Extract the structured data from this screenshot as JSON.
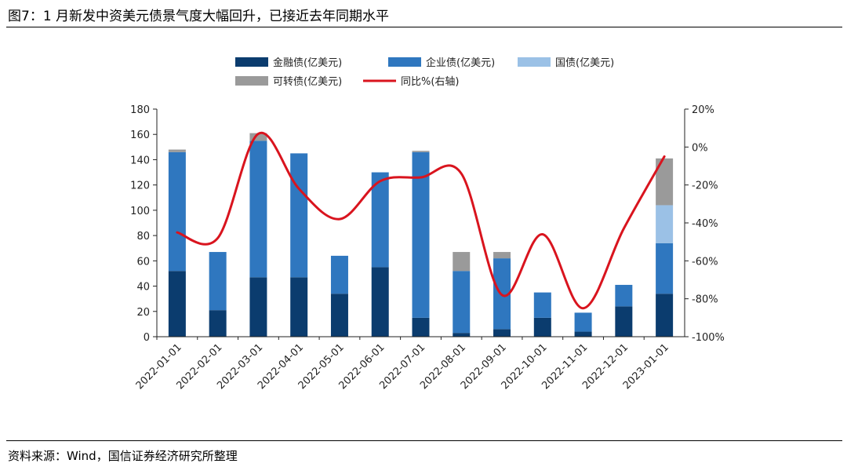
{
  "figure": {
    "title": "图7：1 月新发中资美元债景气度大幅回升，已接近去年同期水平",
    "source": "资料来源：Wind，国信证券经济研究所整理"
  },
  "colors": {
    "financial": "#0b3c6e",
    "corporate": "#2f77bf",
    "government": "#9bc1e6",
    "convertible": "#9a9a9a",
    "yoy": "#d9141e",
    "axis": "#222222"
  },
  "chart_data": {
    "type": "bar",
    "stacked": true,
    "categories": [
      "2022-01-01",
      "2022-02-01",
      "2022-03-01",
      "2022-04-01",
      "2022-05-01",
      "2022-06-01",
      "2022-07-01",
      "2022-08-01",
      "2022-09-01",
      "2022-10-01",
      "2022-11-01",
      "2022-12-01",
      "2023-01-01"
    ],
    "series": [
      {
        "name": "金融债(亿美元)",
        "color_key": "financial",
        "values": [
          52,
          21,
          47,
          47,
          34,
          55,
          15,
          3,
          6,
          15,
          4,
          24,
          34
        ]
      },
      {
        "name": "企业债(亿美元)",
        "color_key": "corporate",
        "values": [
          94,
          46,
          108,
          98,
          30,
          75,
          131,
          49,
          56,
          20,
          15,
          17,
          40
        ]
      },
      {
        "name": "国债(亿美元)",
        "color_key": "government",
        "values": [
          0,
          0,
          0,
          0,
          0,
          0,
          0,
          0,
          0,
          0,
          0,
          0,
          30
        ]
      },
      {
        "name": "可转债(亿美元)",
        "color_key": "convertible",
        "values": [
          2,
          0,
          6,
          0,
          0,
          0,
          1,
          15,
          5,
          0,
          0,
          0,
          37
        ]
      }
    ],
    "line_series": {
      "name": "同比%(右轴)",
      "color_key": "yoy",
      "axis": "right",
      "values": [
        -45,
        -48,
        7,
        -22,
        -38,
        -18,
        -16,
        -14,
        -78,
        -46,
        -85,
        -43,
        -5
      ]
    },
    "y_left": {
      "min": 0,
      "max": 180,
      "step": 20,
      "ticks": [
        "0",
        "20",
        "40",
        "60",
        "80",
        "100",
        "120",
        "140",
        "160",
        "180"
      ]
    },
    "y_right": {
      "min": -100,
      "max": 20,
      "step": 20,
      "ticks": [
        "-100%",
        "-80%",
        "-60%",
        "-40%",
        "-20%",
        "0%",
        "20%"
      ]
    },
    "legend_position": "top-center",
    "grid": false,
    "xlabel": "",
    "ylabel": ""
  }
}
